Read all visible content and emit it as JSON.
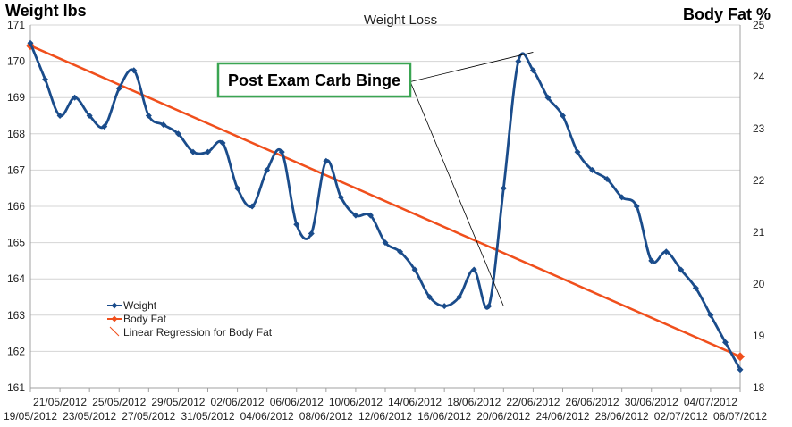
{
  "chart_data": {
    "type": "line",
    "title": "Weight Loss",
    "y_left_label": "Weight lbs",
    "y_right_label": "Body Fat %",
    "y_left_range": [
      161,
      171
    ],
    "y_right_range": [
      18,
      25
    ],
    "y_left_ticks": [
      "161",
      "162",
      "163",
      "164",
      "165",
      "166",
      "167",
      "168",
      "169",
      "170",
      "171"
    ],
    "y_right_ticks": [
      "18",
      "19",
      "20",
      "21",
      "22",
      "23",
      "24",
      "25"
    ],
    "x_range": [
      "19/05/2012",
      "06/07/2012"
    ],
    "x_tick_labels": [
      "19/05/2012",
      "21/05/2012",
      "23/05/2012",
      "25/05/2012",
      "27/05/2012",
      "29/05/2012",
      "31/05/2012",
      "02/06/2012",
      "04/06/2012",
      "06/06/2012",
      "08/06/2012",
      "10/06/2012",
      "12/06/2012",
      "14/06/2012",
      "16/06/2012",
      "18/06/2012",
      "20/06/2012",
      "22/06/2012",
      "24/06/2012",
      "26/06/2012",
      "28/06/2012",
      "30/06/2012",
      "02/07/2012",
      "04/07/2012",
      "06/07/2012"
    ],
    "grid": true,
    "legend_position": "bottom-left",
    "series": [
      {
        "name": "Weight",
        "color": "#1a4c8b",
        "axis": "left",
        "marker": "diamond",
        "x": [
          "19/05/2012",
          "20/05/2012",
          "21/05/2012",
          "22/05/2012",
          "23/05/2012",
          "24/05/2012",
          "25/05/2012",
          "26/05/2012",
          "27/05/2012",
          "28/05/2012",
          "29/05/2012",
          "30/05/2012",
          "31/05/2012",
          "01/06/2012",
          "02/06/2012",
          "03/06/2012",
          "04/06/2012",
          "05/06/2012",
          "06/06/2012",
          "07/06/2012",
          "08/06/2012",
          "09/06/2012",
          "10/06/2012",
          "11/06/2012",
          "12/06/2012",
          "13/06/2012",
          "14/06/2012",
          "15/06/2012",
          "16/06/2012",
          "17/06/2012",
          "18/06/2012",
          "19/06/2012",
          "20/06/2012",
          "21/06/2012",
          "22/06/2012",
          "23/06/2012",
          "24/06/2012",
          "25/06/2012",
          "26/06/2012",
          "27/06/2012",
          "28/06/2012",
          "29/06/2012",
          "30/06/2012",
          "01/07/2012",
          "02/07/2012",
          "03/07/2012",
          "04/07/2012",
          "05/07/2012",
          "06/07/2012"
        ],
        "values": [
          170.5,
          169.5,
          168.5,
          169.0,
          168.5,
          168.2,
          169.25,
          169.75,
          168.5,
          168.25,
          168.0,
          167.5,
          167.5,
          167.75,
          166.5,
          166.0,
          167.0,
          167.5,
          165.5,
          165.25,
          167.25,
          166.25,
          165.75,
          165.75,
          165.0,
          164.75,
          164.25,
          163.5,
          163.25,
          163.5,
          164.25,
          163.25,
          166.5,
          170.0,
          169.75,
          169.0,
          168.5,
          167.5,
          167.0,
          166.75,
          166.25,
          166.0,
          164.5,
          164.75,
          164.25,
          163.75,
          163.0,
          162.25,
          161.5
        ]
      },
      {
        "name": "Body Fat",
        "color": "#f04f1c",
        "axis": "right",
        "marker": "diamond",
        "x": [
          "19/05/2012",
          "06/07/2012"
        ],
        "values": [
          24.6,
          18.6
        ]
      }
    ],
    "legend_extra": "Linear Regression for Body Fat",
    "annotation": {
      "text": "Post Exam Carb Binge",
      "box_color": "#3aa552",
      "points_to": [
        {
          "x": "20/06/2012",
          "value": 163.25
        },
        {
          "x": "22/06/2012",
          "value": 170.25
        }
      ]
    }
  }
}
